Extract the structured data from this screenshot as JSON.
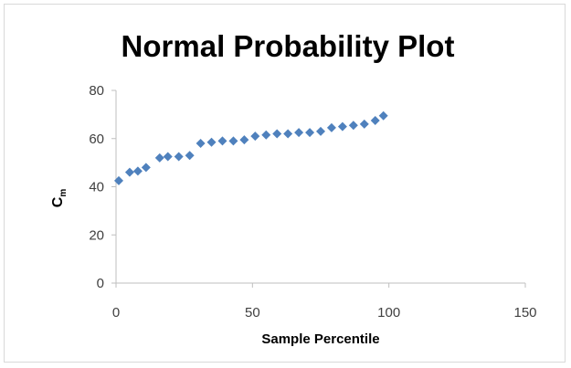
{
  "chart_data": {
    "type": "scatter",
    "title": "Normal Probability Plot",
    "xlabel": "Sample Percentile",
    "ylabel": "C",
    "ylabel_subscript": "m",
    "xlim": [
      0,
      150
    ],
    "ylim": [
      0,
      80
    ],
    "xticks": [
      0,
      50,
      100,
      150
    ],
    "yticks": [
      0,
      20,
      40,
      60,
      80
    ],
    "grid": false,
    "legend": "none",
    "marker": "diamond",
    "color": "#4f81bd",
    "series": [
      {
        "points": [
          [
            1,
            42.5
          ],
          [
            5,
            46
          ],
          [
            8,
            46.5
          ],
          [
            11,
            48
          ],
          [
            16,
            52
          ],
          [
            19,
            52.5
          ],
          [
            23,
            52.5
          ],
          [
            27,
            53
          ],
          [
            31,
            58
          ],
          [
            35,
            58.5
          ],
          [
            39,
            59
          ],
          [
            43,
            59
          ],
          [
            47,
            59.5
          ],
          [
            51,
            61
          ],
          [
            55,
            61.5
          ],
          [
            59,
            62
          ],
          [
            63,
            62
          ],
          [
            67,
            62.5
          ],
          [
            71,
            62.5
          ],
          [
            75,
            63
          ],
          [
            79,
            64.5
          ],
          [
            83,
            65
          ],
          [
            87,
            65.5
          ],
          [
            91,
            66
          ],
          [
            95,
            67.5
          ],
          [
            98,
            69.5
          ]
        ]
      }
    ]
  }
}
